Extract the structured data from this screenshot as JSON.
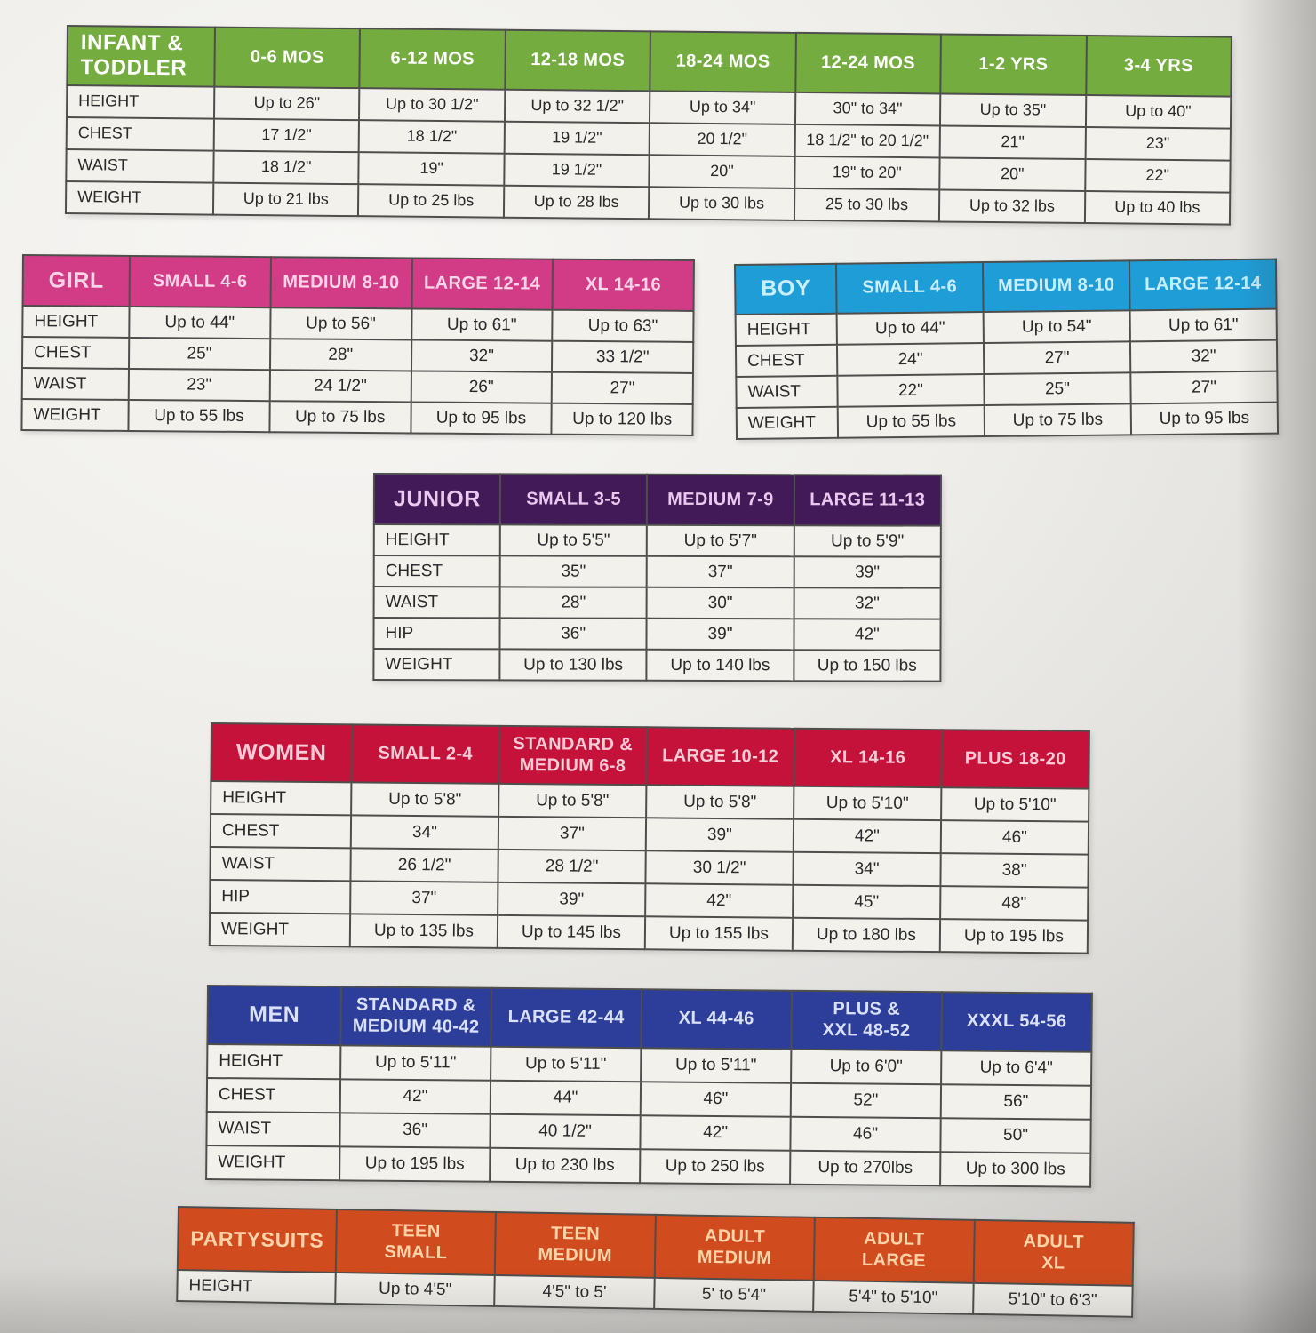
{
  "page": {
    "description": "Costume size chart sheet",
    "background": "#e9e8e5"
  },
  "tables": [
    {
      "key": "infant",
      "title": "INFANT &\nTODDLER",
      "colors": {
        "bg": "#74ac3f",
        "text": "#ffffff"
      },
      "columns": [
        "0-6 MOS",
        "6-12 MOS",
        "12-18 MOS",
        "18-24 MOS",
        "12-24 MOS",
        "1-2 YRS",
        "3-4 YRS"
      ],
      "rows": [
        {
          "label": "HEIGHT",
          "values": [
            "Up to 26\"",
            "Up to 30 1/2\"",
            "Up to 32 1/2\"",
            "Up to 34\"",
            "30\" to 34\"",
            "Up to 35\"",
            "Up to 40\""
          ]
        },
        {
          "label": "CHEST",
          "values": [
            "17 1/2\"",
            "18 1/2\"",
            "19 1/2\"",
            "20 1/2\"",
            "18 1/2\" to 20 1/2\"",
            "21\"",
            "23\""
          ]
        },
        {
          "label": "WAIST",
          "values": [
            "18 1/2\"",
            "19\"",
            "19 1/2\"",
            "20\"",
            "19\" to 20\"",
            "20\"",
            "22\""
          ]
        },
        {
          "label": "WEIGHT",
          "values": [
            "Up to 21 lbs",
            "Up to 25 lbs",
            "Up to 28 lbs",
            "Up to 30 lbs",
            "25 to 30 lbs",
            "Up to 32 lbs",
            "Up to 40 lbs"
          ]
        }
      ]
    },
    {
      "key": "girl",
      "title": "GIRL",
      "colors": {
        "bg": "#d23c87",
        "text": "#fbd4e7"
      },
      "columns": [
        "SMALL 4-6",
        "MEDIUM 8-10",
        "LARGE 12-14",
        "XL 14-16"
      ],
      "rows": [
        {
          "label": "HEIGHT",
          "values": [
            "Up to 44\"",
            "Up to 56\"",
            "Up to 61\"",
            "Up to 63\""
          ]
        },
        {
          "label": "CHEST",
          "values": [
            "25\"",
            "28\"",
            "32\"",
            "33 1/2\""
          ]
        },
        {
          "label": "WAIST",
          "values": [
            "23\"",
            "24 1/2\"",
            "26\"",
            "27\""
          ]
        },
        {
          "label": "WEIGHT",
          "values": [
            "Up to 55 lbs",
            "Up to 75 lbs",
            "Up to 95 lbs",
            "Up to 120 lbs"
          ]
        }
      ]
    },
    {
      "key": "boy",
      "title": "BOY",
      "colors": {
        "bg": "#1f9dd7",
        "text": "#c9eefa"
      },
      "columns": [
        "SMALL 4-6",
        "MEDIUM 8-10",
        "LARGE 12-14"
      ],
      "rows": [
        {
          "label": "HEIGHT",
          "values": [
            "Up to 44\"",
            "Up to 54\"",
            "Up to 61\""
          ]
        },
        {
          "label": "CHEST",
          "values": [
            "24\"",
            "27\"",
            "32\""
          ]
        },
        {
          "label": "WAIST",
          "values": [
            "22\"",
            "25\"",
            "27\""
          ]
        },
        {
          "label": "WEIGHT",
          "values": [
            "Up to 55 lbs",
            "Up to 75 lbs",
            "Up to 95 lbs"
          ]
        }
      ]
    },
    {
      "key": "junior",
      "title": "JUNIOR",
      "colors": {
        "bg": "#421a58",
        "text": "#eac9ef"
      },
      "columns": [
        "SMALL 3-5",
        "MEDIUM 7-9",
        "LARGE 11-13"
      ],
      "rows": [
        {
          "label": "HEIGHT",
          "values": [
            "Up to 5'5\"",
            "Up to 5'7\"",
            "Up to 5'9\""
          ]
        },
        {
          "label": "CHEST",
          "values": [
            "35\"",
            "37\"",
            "39\""
          ]
        },
        {
          "label": "WAIST",
          "values": [
            "28\"",
            "30\"",
            "32\""
          ]
        },
        {
          "label": "HIP",
          "values": [
            "36\"",
            "39\"",
            "42\""
          ]
        },
        {
          "label": "WEIGHT",
          "values": [
            "Up to 130 lbs",
            "Up to 140 lbs",
            "Up to 150 lbs"
          ]
        }
      ]
    },
    {
      "key": "women",
      "title": "WOMEN",
      "colors": {
        "bg": "#c5123a",
        "text": "#f7ccd6"
      },
      "columns": [
        "SMALL 2-4",
        "STANDARD &\nMEDIUM 6-8",
        "LARGE 10-12",
        "XL 14-16",
        "PLUS 18-20"
      ],
      "rows": [
        {
          "label": "HEIGHT",
          "values": [
            "Up to 5'8\"",
            "Up to 5'8\"",
            "Up to 5'8\"",
            "Up to 5'10\"",
            "Up to 5'10\""
          ]
        },
        {
          "label": "CHEST",
          "values": [
            "34\"",
            "37\"",
            "39\"",
            "42\"",
            "46\""
          ]
        },
        {
          "label": "WAIST",
          "values": [
            "26 1/2\"",
            "28 1/2\"",
            "30 1/2\"",
            "34\"",
            "38\""
          ]
        },
        {
          "label": "HIP",
          "values": [
            "37\"",
            "39\"",
            "42\"",
            "45\"",
            "48\""
          ]
        },
        {
          "label": "WEIGHT",
          "values": [
            "Up to 135 lbs",
            "Up to 145 lbs",
            "Up to 155 lbs",
            "Up to 180 lbs",
            "Up to 195 lbs"
          ]
        }
      ]
    },
    {
      "key": "men",
      "title": "MEN",
      "colors": {
        "bg": "#2c3e99",
        "text": "#d9e0f7"
      },
      "columns": [
        "STANDARD &\nMEDIUM 40-42",
        "LARGE 42-44",
        "XL 44-46",
        "PLUS &\nXXL 48-52",
        "XXXL 54-56"
      ],
      "rows": [
        {
          "label": "HEIGHT",
          "values": [
            "Up to 5'11\"",
            "Up to 5'11\"",
            "Up to 5'11\"",
            "Up to 6'0\"",
            "Up to 6'4\""
          ]
        },
        {
          "label": "CHEST",
          "values": [
            "42\"",
            "44\"",
            "46\"",
            "52\"",
            "56\""
          ]
        },
        {
          "label": "WAIST",
          "values": [
            "36\"",
            "40 1/2\"",
            "42\"",
            "46\"",
            "50\""
          ]
        },
        {
          "label": "WEIGHT",
          "values": [
            "Up to 195 lbs",
            "Up to 230 lbs",
            "Up to 250 lbs",
            "Up to 270lbs",
            "Up to 300 lbs"
          ]
        }
      ]
    },
    {
      "key": "party",
      "title": "PARTYSUITS",
      "colors": {
        "bg": "#d04b1e",
        "text": "#ffd3a8"
      },
      "columns": [
        "TEEN\nSMALL",
        "TEEN\nMEDIUM",
        "ADULT\nMEDIUM",
        "ADULT\nLARGE",
        "ADULT\nXL"
      ],
      "rows": [
        {
          "label": "HEIGHT",
          "values": [
            "Up to 4'5\"",
            "4'5\" to 5'",
            "5' to 5'4\"",
            "5'4\" to 5'10\"",
            "5'10\" to 6'3\""
          ]
        }
      ]
    }
  ]
}
